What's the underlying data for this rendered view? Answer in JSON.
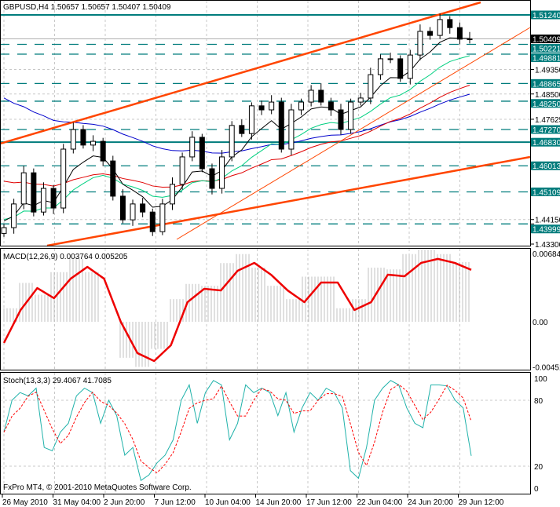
{
  "header": {
    "symbol_line": "GBPUSD,H4  1.50657 1.50657 1.50407 1.50409"
  },
  "footer": {
    "copyright": "FxPro MT4, © 2001-2010 MetaQuotes Software Corp."
  },
  "colors": {
    "bull": "#000000",
    "bear": "#000000",
    "level": "#007c7c",
    "trend": "#ff4500",
    "ma_blue": "#0000cc",
    "ma_red": "#e00000",
    "ma_green": "#00d080",
    "ma_black": "#000000",
    "macd_signal": "#ee0000",
    "macd_hist": "#c0c0c0",
    "stoch_main": "#20b2aa",
    "stoch_signal": "#ff0000"
  },
  "price_axis": {
    "min": 1.433,
    "max": 1.5124,
    "plain_labels": [
      "1.49350",
      "1.48500",
      "1.47625",
      "1.44150",
      "1.43300"
    ],
    "level_labels": [
      "1.51240",
      "1.50221",
      "1.49881",
      "1.48865",
      "1.48250",
      "1.47270",
      "1.46830",
      "1.46013",
      "1.45109",
      "1.43999"
    ],
    "current_price": "1.50409"
  },
  "levels": {
    "solid": [
      1.5124,
      1.4683
    ],
    "dashed": [
      1.50221,
      1.49881,
      1.48865,
      1.4825,
      1.4727,
      1.46013,
      1.45109,
      1.43999
    ]
  },
  "chart_data": [
    {
      "type": "candlestick",
      "title": "GBPUSD,H4",
      "closes": [
        1.4387,
        1.4469,
        1.4577,
        1.4441,
        1.4523,
        1.4455,
        1.4659,
        1.4727,
        1.4673,
        1.4686,
        1.4618,
        1.4496,
        1.4414,
        1.4469,
        1.4441,
        1.4373,
        1.4469,
        1.4537,
        1.4632,
        1.47,
        1.4591,
        1.4523,
        1.4632,
        1.4741,
        1.4713,
        1.4809,
        1.4795,
        1.4822,
        1.4659,
        1.4795,
        1.4822,
        1.4863,
        1.4822,
        1.4795,
        1.4727,
        1.4822,
        1.4836,
        1.4917,
        1.4972,
        1.4972,
        1.4904,
        1.4985,
        1.5067,
        1.5053,
        1.5108,
        1.508,
        1.504,
        1.50409
      ],
      "ylim": [
        1.433,
        1.5124
      ]
    },
    {
      "type": "line",
      "title": "MACD(12,26,9) 0.003764 0.005205",
      "ylim": [
        -0.00451,
        0.00684
      ],
      "tick_labels": [
        "0.006840",
        "0.00",
        "-0.004510"
      ],
      "signal": [
        -0.00212,
        0.00118,
        0.00338,
        0.00236,
        0.00432,
        0.0055,
        0.00432,
        0.0,
        -0.00314,
        -0.00393,
        -0.00236,
        0.00197,
        0.0033,
        0.00314,
        0.00511,
        0.0059,
        0.00472,
        0.00314,
        0.00197,
        0.00393,
        0.00393,
        0.00118,
        0.00197,
        0.00472,
        0.00456,
        0.0059,
        0.0063,
        0.0059,
        0.005205
      ]
    },
    {
      "type": "line",
      "title": "Stoch(13,3,3) 29.4067 41.7085",
      "ylim": [
        0,
        100
      ],
      "tick_labels": [
        "100",
        "80",
        "20",
        "0"
      ],
      "main": [
        51,
        80,
        87,
        84,
        91,
        37,
        34,
        51,
        59,
        84,
        91,
        87,
        59,
        80,
        66,
        30,
        37,
        7,
        12,
        23,
        30,
        44,
        80,
        94,
        59,
        87,
        98,
        94,
        44,
        59,
        94,
        87,
        91,
        87,
        66,
        87,
        51,
        73,
        87,
        80,
        91,
        87,
        73,
        16,
        9,
        37,
        80,
        91,
        98,
        94,
        73,
        59,
        55,
        94,
        94,
        93,
        80,
        73,
        29.4067
      ]
    }
  ],
  "time_axis": {
    "labels": [
      "26 May 2010",
      "31 May 04:00",
      "2 Jun 20:00",
      "7 Jun 12:00",
      "10 Jun 04:00",
      "14 Jun 20:00",
      "17 Jun 12:00",
      "22 Jun 04:00",
      "24 Jun 20:00",
      "29 Jun 12:00"
    ]
  }
}
